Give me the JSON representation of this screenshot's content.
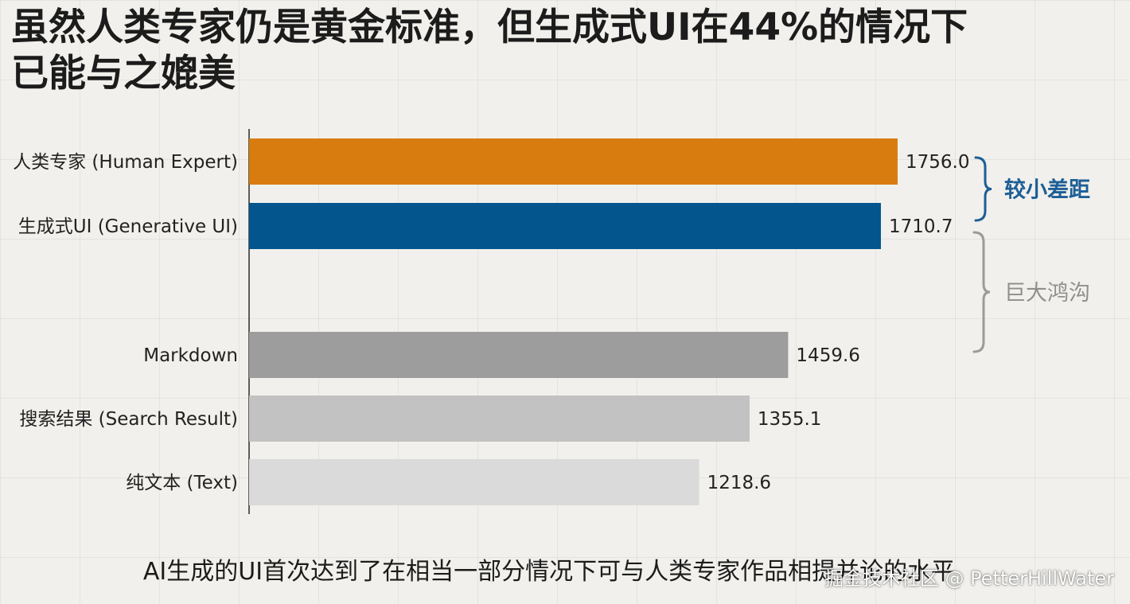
{
  "title_lines": [
    "虽然人类专家仍是黄金标准，但生成式UI在44%的情况下",
    "已能与之媲美"
  ],
  "chart_data": {
    "type": "bar",
    "orientation": "horizontal",
    "categories": [
      "人类专家 (Human Expert)",
      "生成式UI (Generative UI)",
      "Markdown",
      "搜索结果 (Search Result)",
      "纯文本 (Text)"
    ],
    "values": [
      1756.0,
      1710.7,
      1459.6,
      1355.1,
      1218.6
    ],
    "value_labels": [
      "1756.0",
      "1710.7",
      "1459.6",
      "1355.1",
      "1218.6"
    ],
    "colors": [
      "#d87c10",
      "#03558e",
      "#9d9d9d",
      "#c2c2c2",
      "#dadada"
    ],
    "annotations": [
      {
        "text": "较小差距",
        "color": "#1d5e96",
        "bold": true
      },
      {
        "text": "巨大鸿沟",
        "color": "#8f8f8f",
        "bold": false
      }
    ],
    "xlim": [
      0,
      1756.0
    ],
    "grid": true
  },
  "footer": "AI生成的UI首次达到了在相当一部分情况下可与人类专家作品相提并论的水平",
  "watermark": "掘金技术社区 @ PetterHillWater"
}
